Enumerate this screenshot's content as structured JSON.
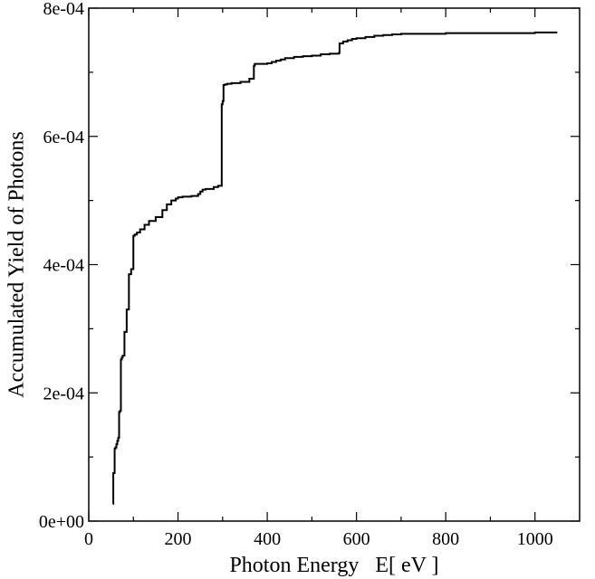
{
  "chart_data": {
    "type": "line",
    "title": "",
    "xlabel": "Photon Energy   E[ eV ]",
    "ylabel": "Accumulated Yield of Photons",
    "xlim": [
      0,
      1100
    ],
    "ylim": [
      0,
      0.0008
    ],
    "x_ticks": [
      {
        "value": 0,
        "label": "0"
      },
      {
        "value": 200,
        "label": "200"
      },
      {
        "value": 400,
        "label": "400"
      },
      {
        "value": 600,
        "label": "600"
      },
      {
        "value": 800,
        "label": "800"
      },
      {
        "value": 1000,
        "label": "1000"
      }
    ],
    "y_ticks": [
      {
        "value": 0,
        "label": "0e+00"
      },
      {
        "value": 0.0002,
        "label": "2e-04"
      },
      {
        "value": 0.0004,
        "label": "4e-04"
      },
      {
        "value": 0.0006,
        "label": "6e-04"
      },
      {
        "value": 0.0008,
        "label": "8e-04"
      }
    ],
    "grid": false,
    "legend": "none",
    "line_color": "#000000",
    "series": [
      {
        "x": [
          54,
          55,
          56,
          58,
          60,
          62,
          64,
          66,
          68,
          70,
          72,
          74,
          76,
          78,
          80,
          85,
          90,
          95,
          100,
          103,
          108,
          115,
          125,
          135,
          150,
          165,
          175,
          185,
          195,
          200,
          210,
          230,
          245,
          250,
          255,
          262,
          270,
          280,
          290,
          297,
          298,
          300,
          302,
          305,
          310,
          320,
          340,
          360,
          370,
          372,
          380,
          400,
          410,
          420,
          430,
          440,
          460,
          480,
          500,
          520,
          540,
          560,
          562,
          570,
          580,
          590,
          600,
          620,
          640,
          660,
          680,
          700,
          750,
          800,
          850,
          900,
          950,
          1000,
          1050
        ],
        "y": [
          2.7e-05,
          7.5e-05,
          7.5e-05,
          0.000113,
          0.000115,
          0.00012,
          0.000125,
          0.00013,
          0.00017,
          0.000172,
          0.000252,
          0.000255,
          0.000258,
          0.000258,
          0.000295,
          0.00033,
          0.000385,
          0.000393,
          0.000445,
          0.000447,
          0.00045,
          0.000455,
          0.000462,
          0.000468,
          0.000474,
          0.000485,
          0.000494,
          0.0005,
          0.000503,
          0.000505,
          0.000506,
          0.000507,
          0.00051,
          0.000514,
          0.000517,
          0.000518,
          0.000518,
          0.000521,
          0.000523,
          0.000523,
          0.00065,
          0.000655,
          0.00068,
          0.000681,
          0.000682,
          0.000683,
          0.000685,
          0.00069,
          0.00071,
          0.000713,
          0.000713,
          0.000714,
          0.000716,
          0.000718,
          0.00072,
          0.000722,
          0.000724,
          0.000725,
          0.000726,
          0.000728,
          0.000729,
          0.00073,
          0.000745,
          0.000748,
          0.00075,
          0.000752,
          0.000753,
          0.000755,
          0.000757,
          0.000758,
          0.000759,
          0.00076,
          0.00076,
          0.000761,
          0.000761,
          0.000761,
          0.000761,
          0.000762,
          0.000762
        ]
      }
    ]
  }
}
